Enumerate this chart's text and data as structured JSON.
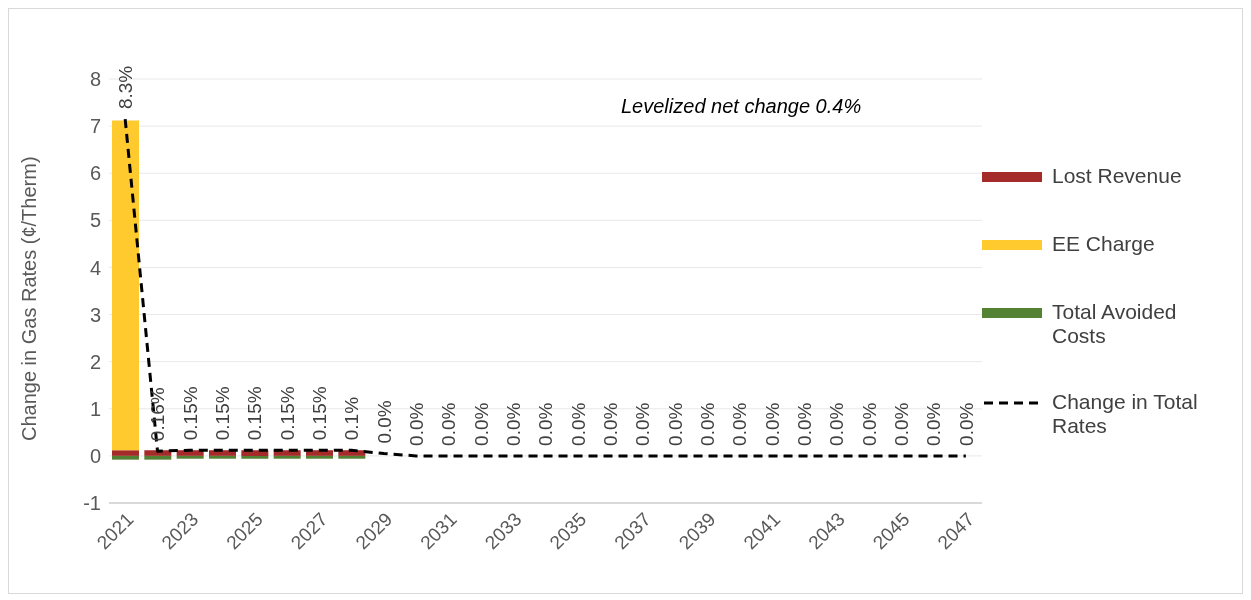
{
  "chart_data": {
    "type": "bar",
    "stacked": true,
    "ylabel": "Change in Gas Rates (¢/Therm)",
    "x": [
      2021,
      2022,
      2023,
      2024,
      2025,
      2026,
      2027,
      2028,
      2029,
      2030,
      2031,
      2032,
      2033,
      2034,
      2035,
      2036,
      2037,
      2038,
      2039,
      2040,
      2041,
      2042,
      2043,
      2044,
      2045,
      2046,
      2047
    ],
    "xlim": [
      2020.5,
      2047.5
    ],
    "xticks": [
      2021,
      2023,
      2025,
      2027,
      2029,
      2031,
      2033,
      2035,
      2037,
      2039,
      2041,
      2043,
      2045,
      2047
    ],
    "series": [
      {
        "name": "Lost Revenue",
        "color": "#a52a2a",
        "values": [
          0.12,
          0.12,
          0.12,
          0.12,
          0.12,
          0.12,
          0.12,
          0.12,
          0,
          0,
          0,
          0,
          0,
          0,
          0,
          0,
          0,
          0,
          0,
          0,
          0,
          0,
          0,
          0,
          0,
          0,
          0
        ]
      },
      {
        "name": "EE Charge",
        "color": "#ffca2e",
        "values": [
          7.0,
          0,
          0,
          0,
          0,
          0,
          0,
          0,
          0,
          0,
          0,
          0,
          0,
          0,
          0,
          0,
          0,
          0,
          0,
          0,
          0,
          0,
          0,
          0,
          0,
          0,
          0
        ]
      },
      {
        "name": "Total Avoided Costs",
        "color": "#548235",
        "values": [
          -0.08,
          -0.08,
          -0.06,
          -0.06,
          -0.06,
          -0.06,
          -0.06,
          -0.06,
          0,
          0,
          0,
          0,
          0,
          0,
          0,
          0,
          0,
          0,
          0,
          0,
          0,
          0,
          0,
          0,
          0,
          0,
          0
        ]
      },
      {
        "name": "Change in Total Rates",
        "type": "line",
        "color": "#000000",
        "line_style": "dashed",
        "marker": "none",
        "values": [
          7.15,
          0.1,
          0.12,
          0.12,
          0.12,
          0.12,
          0.12,
          0.12,
          0.05,
          0,
          0,
          0,
          0,
          0,
          0,
          0,
          0,
          0,
          0,
          0,
          0,
          0,
          0,
          0,
          0,
          0,
          0
        ]
      }
    ],
    "ylim": [
      -1,
      8
    ],
    "yticks": [
      -1,
      0,
      1,
      2,
      3,
      4,
      5,
      6,
      7,
      8
    ],
    "grid": "y",
    "legend": "right",
    "annotations": [
      "Levelized net change 0.4%",
      {
        "text": "8.3%",
        "x": 2021,
        "y": 7.15
      },
      {
        "text": "0.16%",
        "x": 2022,
        "y": 0.1
      },
      {
        "text": "0.15%",
        "x": 2023,
        "y": 0.12
      },
      {
        "text": "0.15%",
        "x": 2024,
        "y": 0.12
      },
      {
        "text": "0.15%",
        "x": 2025,
        "y": 0.12
      },
      {
        "text": "0.15%",
        "x": 2026,
        "y": 0.12
      },
      {
        "text": "0.15%",
        "x": 2027,
        "y": 0.12
      },
      {
        "text": "0.1%",
        "x": 2028,
        "y": 0.12
      },
      {
        "text": "0.0%",
        "x": 2029,
        "y": 0.05
      },
      {
        "text": "0.0%",
        "x": 2030,
        "y": 0
      },
      {
        "text": "0.0%",
        "x": 2031,
        "y": 0
      },
      {
        "text": "0.0%",
        "x": 2032,
        "y": 0
      },
      {
        "text": "0.0%",
        "x": 2033,
        "y": 0
      },
      {
        "text": "0.0%",
        "x": 2034,
        "y": 0
      },
      {
        "text": "0.0%",
        "x": 2035,
        "y": 0
      },
      {
        "text": "0.0%",
        "x": 2036,
        "y": 0
      },
      {
        "text": "0.0%",
        "x": 2037,
        "y": 0
      },
      {
        "text": "0.0%",
        "x": 2038,
        "y": 0
      },
      {
        "text": "0.0%",
        "x": 2039,
        "y": 0
      },
      {
        "text": "0.0%",
        "x": 2040,
        "y": 0
      },
      {
        "text": "0.0%",
        "x": 2041,
        "y": 0
      },
      {
        "text": "0.0%",
        "x": 2042,
        "y": 0
      },
      {
        "text": "0.0%",
        "x": 2043,
        "y": 0
      },
      {
        "text": "0.0%",
        "x": 2044,
        "y": 0
      },
      {
        "text": "0.0%",
        "x": 2045,
        "y": 0
      },
      {
        "text": "0.0%",
        "x": 2046,
        "y": 0
      },
      {
        "text": "0.0%",
        "x": 2047,
        "y": 0
      }
    ]
  }
}
